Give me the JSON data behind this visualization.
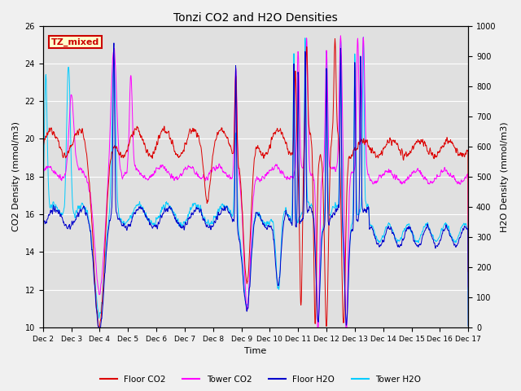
{
  "title": "Tonzi CO2 and H2O Densities",
  "xlabel": "Time",
  "ylabel_left": "CO2 Density (mmol/m3)",
  "ylabel_right": "H2O Density (mmol/m3)",
  "ylim_left": [
    10,
    26
  ],
  "ylim_right": [
    0,
    1000
  ],
  "yticks_left": [
    10,
    12,
    14,
    16,
    18,
    20,
    22,
    24,
    26
  ],
  "yticks_right": [
    0,
    100,
    200,
    300,
    400,
    500,
    600,
    700,
    800,
    900,
    1000
  ],
  "xtick_labels": [
    "Dec 2",
    "Dec 3",
    "Dec 4",
    "Dec 5",
    "Dec 6",
    "Dec 7",
    "Dec 8",
    "Dec 9",
    "Dec 10",
    "Dec 11",
    "Dec 12",
    "Dec 13",
    "Dec 14",
    "Dec 15",
    "Dec 16",
    "Dec 17"
  ],
  "annotation_text": "TZ_mixed",
  "annotation_box_facecolor": "#ffffcc",
  "annotation_box_edgecolor": "#cc0000",
  "annotation_text_color": "#cc0000",
  "floor_co2_color": "#dd0000",
  "tower_co2_color": "#ff00ff",
  "floor_h2o_color": "#0000cc",
  "tower_h2o_color": "#00ccff",
  "fig_facecolor": "#f0f0f0",
  "plot_bg_color": "#e0e0e0",
  "grid_color": "#ffffff",
  "legend_labels": [
    "Floor CO2",
    "Tower CO2",
    "Floor H2O",
    "Tower H2O"
  ]
}
